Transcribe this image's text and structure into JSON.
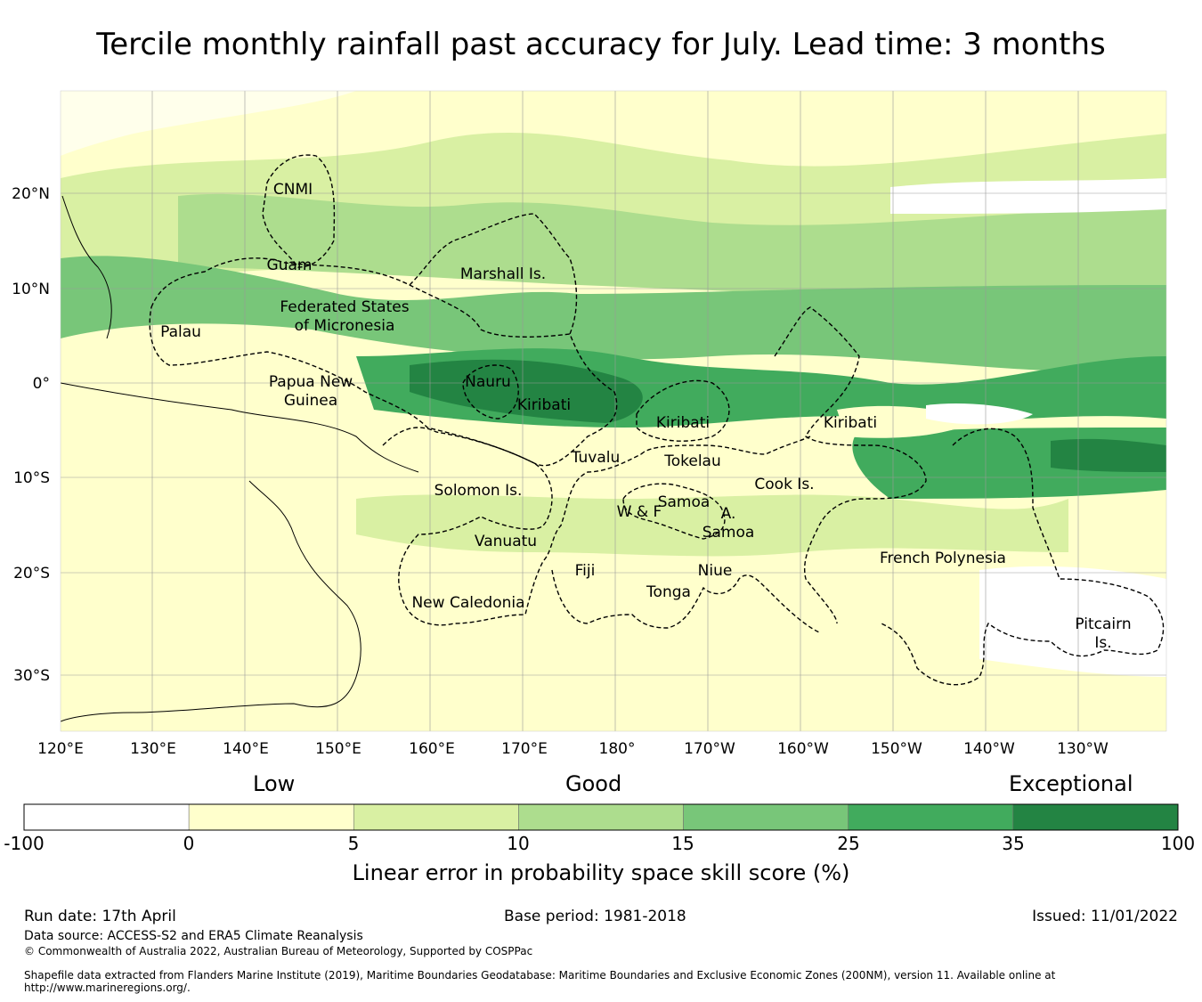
{
  "title": "Tercile monthly rainfall past accuracy for July. Lead time: 3 months",
  "map": {
    "lat_labels": [
      "20°N",
      "10°N",
      "0°",
      "10°S",
      "20°S",
      "30°S"
    ],
    "lon_labels": [
      "120°E",
      "130°E",
      "140°E",
      "150°E",
      "160°E",
      "170°E",
      "180°",
      "170°W",
      "160°W",
      "150°W",
      "140°W",
      "130°W"
    ],
    "regions": [
      "CNMI",
      "Guam",
      "Marshall Is.",
      "Federated States",
      "of Micronesia",
      "Palau",
      "Papua New",
      "Guinea",
      "Nauru",
      "Kiribati",
      "Kiribati",
      "Kiribati",
      "Tuvalu",
      "Tokelau",
      "Solomon Is.",
      "Samoa",
      "W & F",
      "A.",
      "Samoa",
      "Cook Is.",
      "Vanuatu",
      "Fiji",
      "Niue",
      "Tonga",
      "French Polynesia",
      "New Caledonia",
      "Pitcairn",
      "Is."
    ]
  },
  "colorbar": {
    "categories": [
      "Low",
      "Good",
      "Exceptional"
    ],
    "ticks": [
      "-100",
      "0",
      "5",
      "10",
      "15",
      "25",
      "35",
      "100"
    ],
    "colors": [
      "#ffffff",
      "#ffffcc",
      "#d9f0a3",
      "#addd8e",
      "#78c679",
      "#41ab5d",
      "#238443"
    ],
    "axis_label": "Linear error in probability space skill score (%)"
  },
  "footer": {
    "run_date": "Run date: 17th April",
    "base_period": "Base period: 1981-2018",
    "issued": "Issued: 11/01/2022",
    "data_source": "Data source: ACCESS-S2 and ERA5 Climate Reanalysis",
    "copyright": "© Commonwealth of Australia 2022, Australian Bureau of Meteorology, Supported by COSPPac",
    "shapefile_1": "Shapefile data extracted from Flanders Marine Institute (2019), Maritime Boundaries Geodatabase: Maritime Boundaries and Exclusive Economic Zones (200NM), version 11. Available online at",
    "shapefile_2": "http://www.marineregions.org/."
  }
}
